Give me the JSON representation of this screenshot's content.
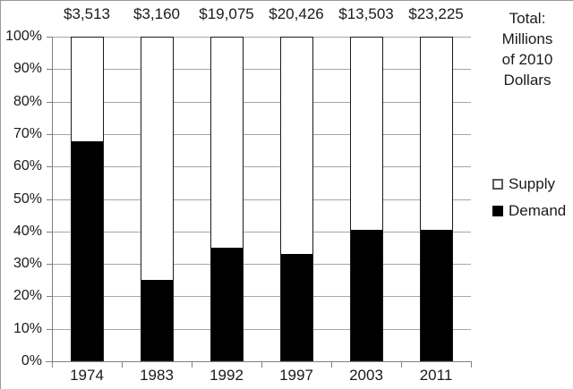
{
  "chart_data": {
    "type": "bar",
    "stacked": true,
    "percent_axis": true,
    "title": "",
    "xlabel": "",
    "ylabel": "",
    "categories": [
      "1974",
      "1983",
      "1992",
      "1997",
      "2003",
      "2011"
    ],
    "bar_totals": [
      "$3,513",
      "$3,160",
      "$19,075",
      "$20,426",
      "$13,503",
      "$23,225"
    ],
    "series": [
      {
        "name": "Demand",
        "values": [
          68,
          25,
          35,
          33,
          40.5,
          40.5
        ]
      },
      {
        "name": "Supply",
        "values": [
          32,
          75,
          65,
          67,
          59.5,
          59.5
        ]
      }
    ],
    "y_ticks": [
      "100%",
      "90%",
      "80%",
      "70%",
      "60%",
      "50%",
      "40%",
      "30%",
      "20%",
      "10%",
      "0%"
    ],
    "ylim": [
      0,
      100
    ],
    "grid": true,
    "legend_position": "right",
    "annotation": "Total: Millions of 2010 Dollars"
  },
  "annotation": {
    "lines": [
      "Total:",
      "Millions",
      "of 2010",
      "Dollars"
    ]
  },
  "legend": {
    "items": [
      {
        "label": "Supply",
        "fill": "#ffffff"
      },
      {
        "label": "Demand",
        "fill": "#000000"
      }
    ]
  },
  "colors": {
    "gridline": "#a6a6a6",
    "axis": "#808080",
    "bar_outline": "#1a1a1a",
    "demand_fill": "#000000",
    "supply_fill": "#ffffff",
    "text": "#1a1a1a"
  }
}
